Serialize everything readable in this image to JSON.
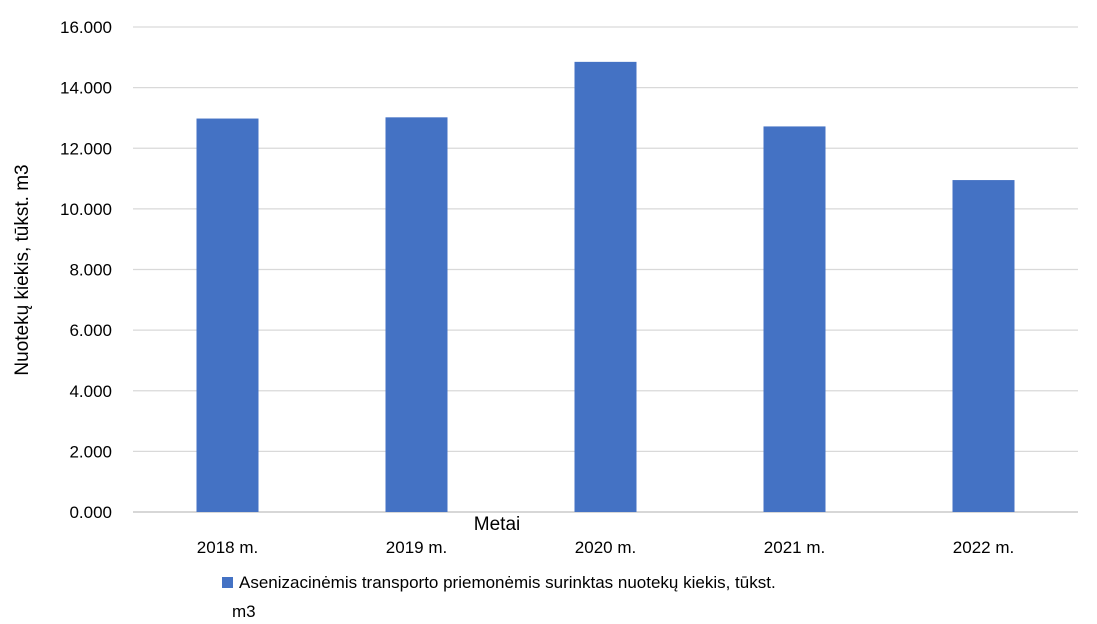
{
  "chart_data": {
    "type": "bar",
    "categories": [
      "2018 m.",
      "2019 m.",
      "2020 m.",
      "2021 m.",
      "2022 m."
    ],
    "series": [
      {
        "name": "Asenizacinėmis transporto priemonėmis surinktas nuotekų kiekis, tūkst. m3",
        "values": [
          12.98,
          13.02,
          14.85,
          12.72,
          10.95
        ],
        "color": "#4472c4"
      }
    ],
    "xlabel": "Metai",
    "ylabel": "Nuotekų kiekis, tūkst. m3",
    "ylim": [
      0,
      16
    ],
    "yticks": [
      0,
      2,
      4,
      6,
      8,
      10,
      12,
      14,
      16
    ],
    "ytick_labels": [
      "0.000",
      "2.000",
      "4.000",
      "6.000",
      "8.000",
      "10.000",
      "12.000",
      "14.000",
      "16.000"
    ],
    "legend": {
      "placement": "bottom",
      "lines": [
        "Asenizacinėmis transporto priemonėmis surinktas nuotekų kiekis, tūkst.",
        "m3"
      ]
    },
    "grid": true
  }
}
